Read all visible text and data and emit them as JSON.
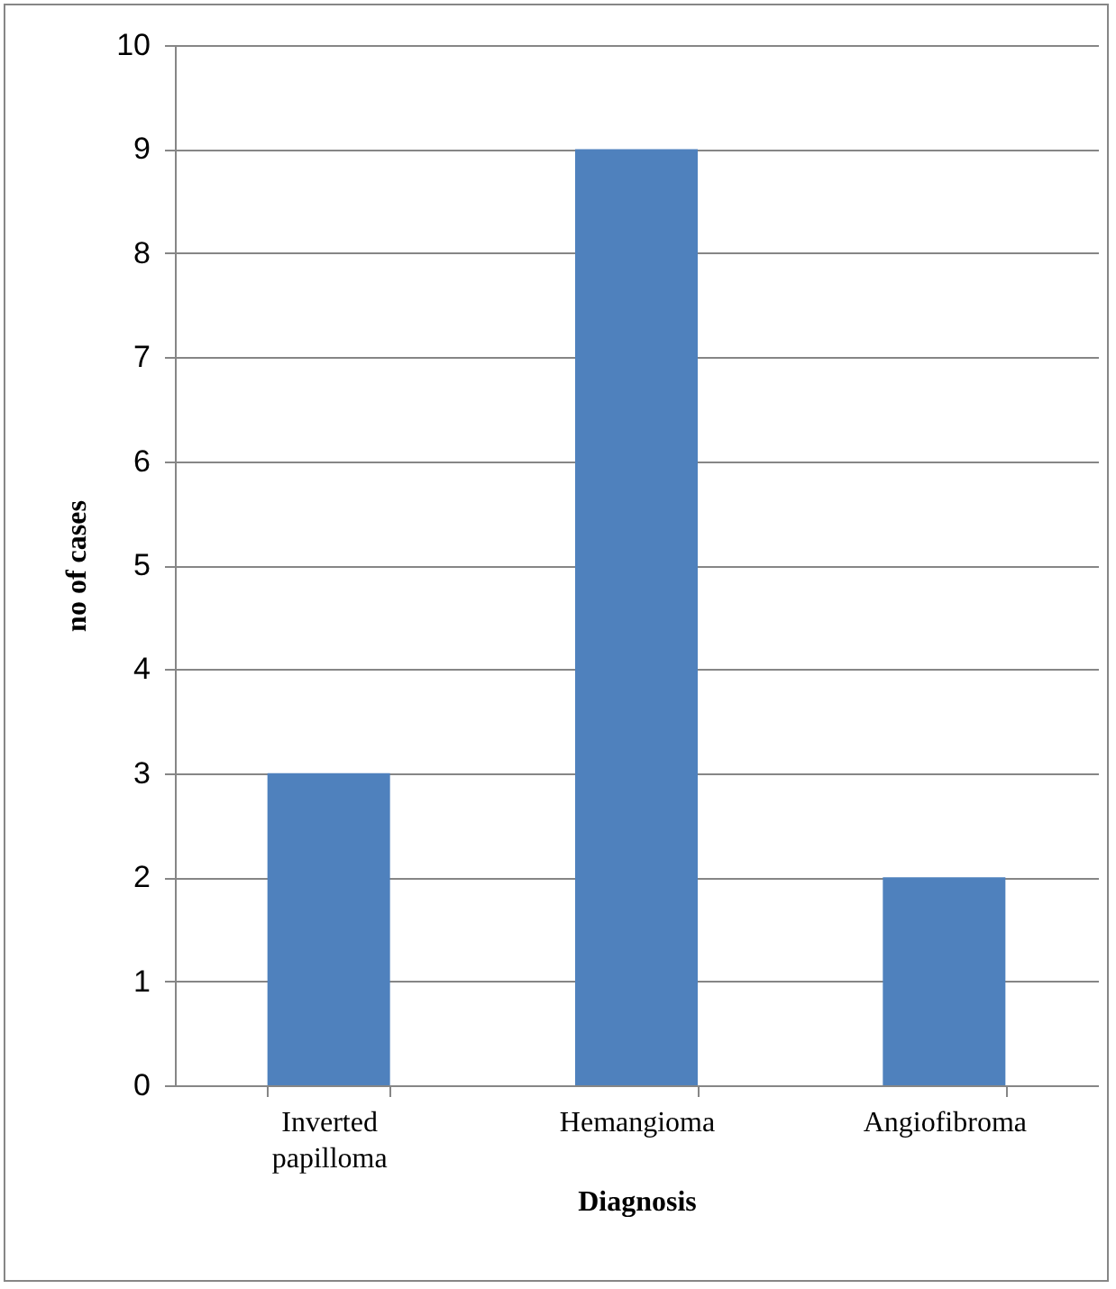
{
  "chart_data": {
    "type": "bar",
    "xlabel": "Diagnosis",
    "ylabel": "no of cases",
    "categories": [
      "Inverted papilloma",
      "Hemangioma",
      "Angiofibroma"
    ],
    "values": [
      3,
      9,
      2
    ],
    "color": "#4f81bd",
    "ylim": [
      0,
      10
    ],
    "yticks": [
      0,
      1,
      2,
      3,
      4,
      5,
      6,
      7,
      8,
      9,
      10
    ],
    "grid": "y"
  }
}
